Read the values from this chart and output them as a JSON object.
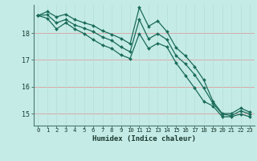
{
  "xlabel": "Humidex (Indice chaleur)",
  "bg_color": "#c4ebe6",
  "line_color": "#1a6b5a",
  "grid_color_h": "#dba8a8",
  "grid_color_v": "#b8ddd8",
  "ylim": [
    14.55,
    19.05
  ],
  "xlim": [
    -0.5,
    23.5
  ],
  "yticks": [
    15,
    16,
    17,
    18
  ],
  "xticks": [
    0,
    1,
    2,
    3,
    4,
    5,
    6,
    7,
    8,
    9,
    10,
    11,
    12,
    13,
    14,
    15,
    16,
    17,
    18,
    19,
    20,
    21,
    22,
    23
  ],
  "line1": [
    18.65,
    18.8,
    18.6,
    18.7,
    18.5,
    18.38,
    18.28,
    18.08,
    17.95,
    17.8,
    17.6,
    18.95,
    18.25,
    18.45,
    18.05,
    17.45,
    17.15,
    16.75,
    16.25,
    15.45,
    15.0,
    15.0,
    15.2,
    15.05
  ],
  "line2": [
    18.65,
    18.68,
    18.38,
    18.5,
    18.3,
    18.18,
    18.05,
    17.85,
    17.72,
    17.48,
    17.3,
    18.5,
    17.78,
    17.98,
    17.75,
    17.15,
    16.85,
    16.45,
    15.95,
    15.38,
    14.98,
    14.92,
    15.1,
    14.98
  ],
  "line3": [
    18.65,
    18.55,
    18.15,
    18.38,
    18.15,
    17.98,
    17.75,
    17.55,
    17.42,
    17.18,
    17.05,
    17.98,
    17.42,
    17.62,
    17.48,
    16.88,
    16.42,
    15.95,
    15.45,
    15.28,
    14.88,
    14.88,
    14.98,
    14.88
  ]
}
